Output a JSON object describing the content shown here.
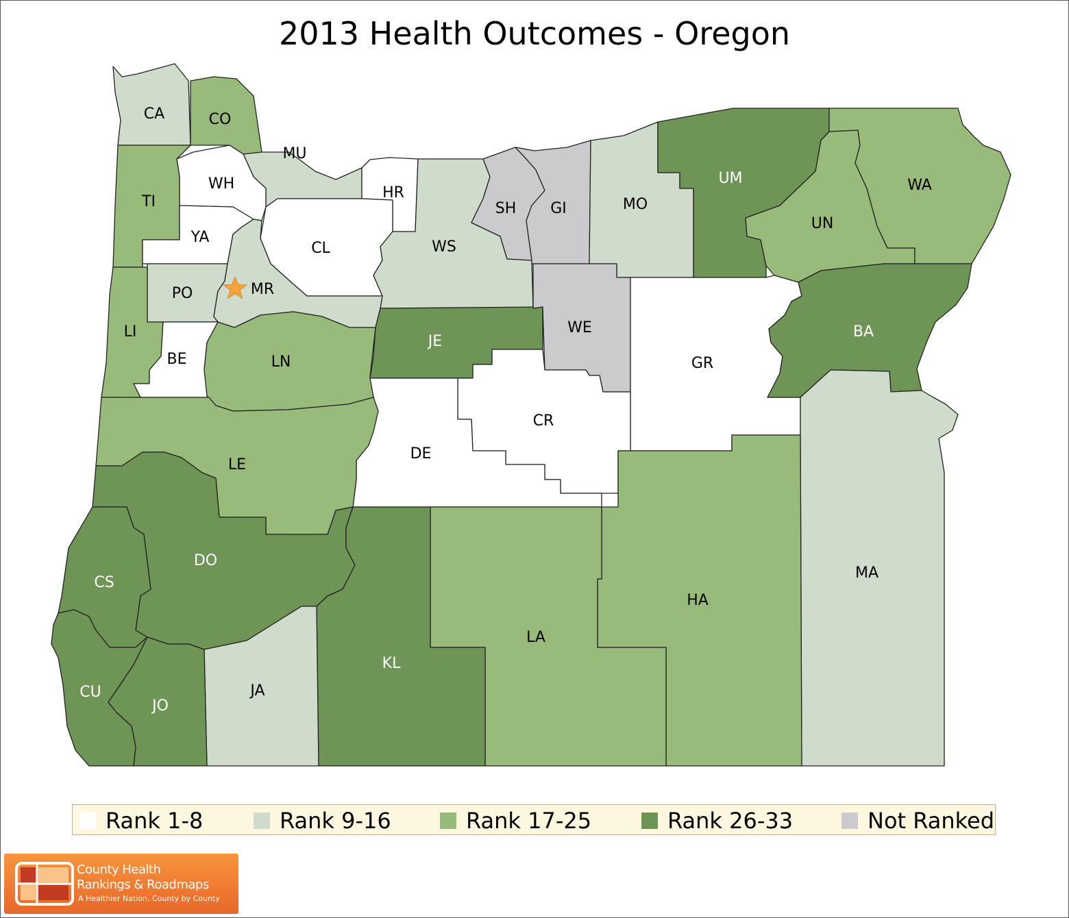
{
  "title": "2013 Health Outcomes - Oregon",
  "colors": {
    "rank_1_8": "#ffffff",
    "rank_9_16": "#d0dccb",
    "rank_17_25": "#98ba7a",
    "rank_26_33": "#6e9555",
    "not_ranked": "#cbcbcd",
    "label_dark": "#000000",
    "label_light": "#ffffff",
    "star": "#f5a43c"
  },
  "legend": [
    {
      "label": "Rank 1-8",
      "color": "#ffffff"
    },
    {
      "label": "Rank 9-16",
      "color": "#d0dccb"
    },
    {
      "label": "Rank 17-25",
      "color": "#98ba7a"
    },
    {
      "label": "Rank 26-33",
      "color": "#6e9555"
    },
    {
      "label": "Not Ranked",
      "color": "#cbcbcd"
    }
  ],
  "counties": [
    {
      "abbr": "CA",
      "category": "Rank 9-16"
    },
    {
      "abbr": "CO",
      "category": "Rank 17-25"
    },
    {
      "abbr": "MU",
      "category": "Rank 9-16"
    },
    {
      "abbr": "WH",
      "category": "Rank 1-8"
    },
    {
      "abbr": "TI",
      "category": "Rank 17-25"
    },
    {
      "abbr": "YA",
      "category": "Rank 1-8"
    },
    {
      "abbr": "HR",
      "category": "Rank 1-8"
    },
    {
      "abbr": "CL",
      "category": "Rank 1-8"
    },
    {
      "abbr": "WS",
      "category": "Rank 9-16"
    },
    {
      "abbr": "SH",
      "category": "Not Ranked"
    },
    {
      "abbr": "GI",
      "category": "Not Ranked"
    },
    {
      "abbr": "MO",
      "category": "Rank 9-16"
    },
    {
      "abbr": "UM",
      "category": "Rank 26-33"
    },
    {
      "abbr": "UN",
      "category": "Rank 17-25"
    },
    {
      "abbr": "WA",
      "category": "Rank 17-25"
    },
    {
      "abbr": "PO",
      "category": "Rank 9-16"
    },
    {
      "abbr": "MR",
      "category": "Rank 9-16"
    },
    {
      "abbr": "LI",
      "category": "Rank 17-25"
    },
    {
      "abbr": "BE",
      "category": "Rank 1-8"
    },
    {
      "abbr": "LN",
      "category": "Rank 17-25"
    },
    {
      "abbr": "JE",
      "category": "Rank 26-33"
    },
    {
      "abbr": "WE",
      "category": "Not Ranked"
    },
    {
      "abbr": "GR",
      "category": "Rank 1-8"
    },
    {
      "abbr": "BA",
      "category": "Rank 26-33"
    },
    {
      "abbr": "CR",
      "category": "Rank 1-8"
    },
    {
      "abbr": "DE",
      "category": "Rank 1-8"
    },
    {
      "abbr": "LE",
      "category": "Rank 17-25"
    },
    {
      "abbr": "DO",
      "category": "Rank 26-33"
    },
    {
      "abbr": "CS",
      "category": "Rank 26-33"
    },
    {
      "abbr": "MA",
      "category": "Rank 9-16"
    },
    {
      "abbr": "HA",
      "category": "Rank 17-25"
    },
    {
      "abbr": "LA",
      "category": "Rank 17-25"
    },
    {
      "abbr": "KL",
      "category": "Rank 26-33"
    },
    {
      "abbr": "JA",
      "category": "Rank 9-16"
    },
    {
      "abbr": "JO",
      "category": "Rank 26-33"
    },
    {
      "abbr": "CU",
      "category": "Rank 26-33"
    }
  ],
  "capital_marker": {
    "county": "MR",
    "icon": "star-icon"
  },
  "logo": {
    "line1": "County Health",
    "line2": "Rankings & Roadmaps",
    "tagline": "A Healthier Nation, County by County"
  }
}
